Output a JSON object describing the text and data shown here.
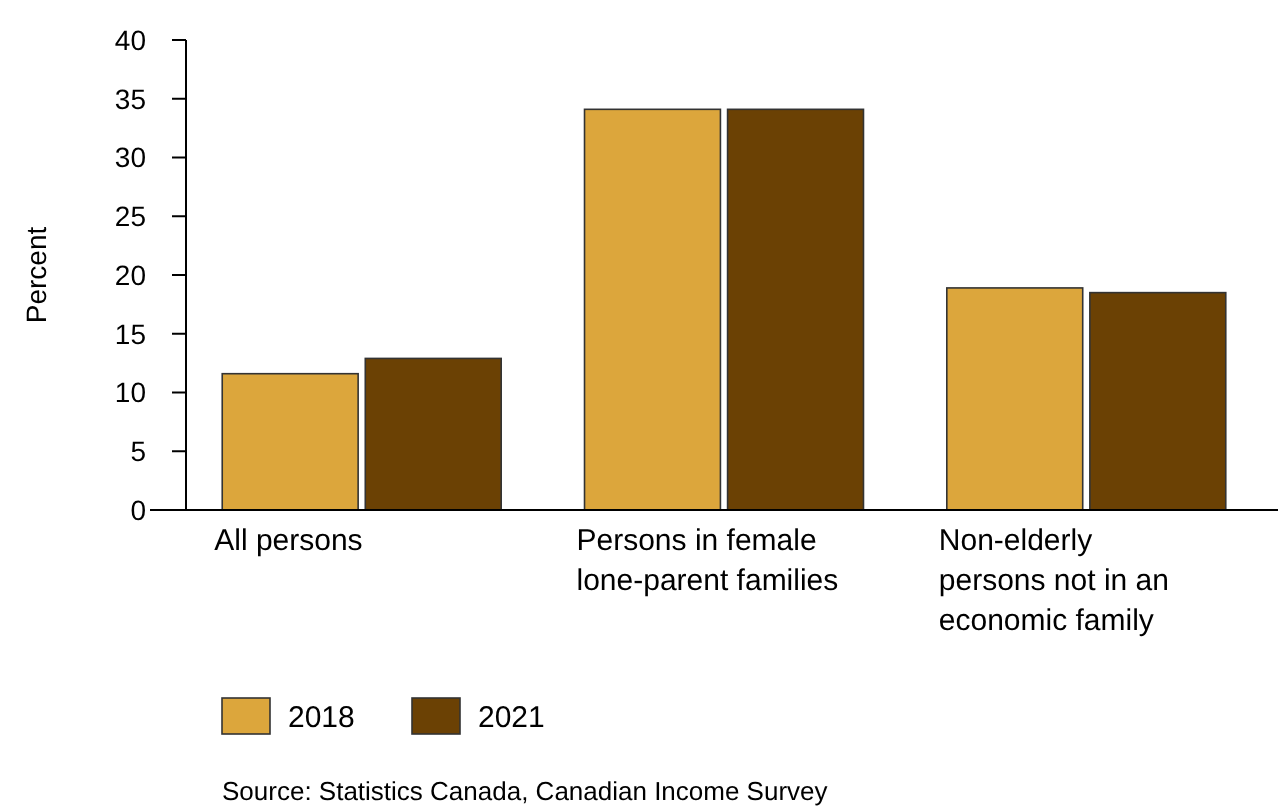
{
  "chart_data": {
    "type": "bar",
    "ylabel": "Percent",
    "categories": [
      "All persons",
      "Persons in female lone-parent families",
      "Non-elderly persons not in an economic family"
    ],
    "series": [
      {
        "name": "2018",
        "color": "#dca63c",
        "values": [
          11.6,
          34.1,
          18.9
        ]
      },
      {
        "name": "2021",
        "color": "#6b4104",
        "values": [
          12.9,
          34.1,
          18.5
        ]
      }
    ],
    "ylim": [
      0,
      40
    ],
    "yticks": [
      0,
      5,
      10,
      15,
      20,
      25,
      30,
      35,
      40
    ],
    "grid": false,
    "legend": "bottom",
    "annotations": [
      "Source: Statistics Canada, Canadian Income Survey"
    ]
  }
}
